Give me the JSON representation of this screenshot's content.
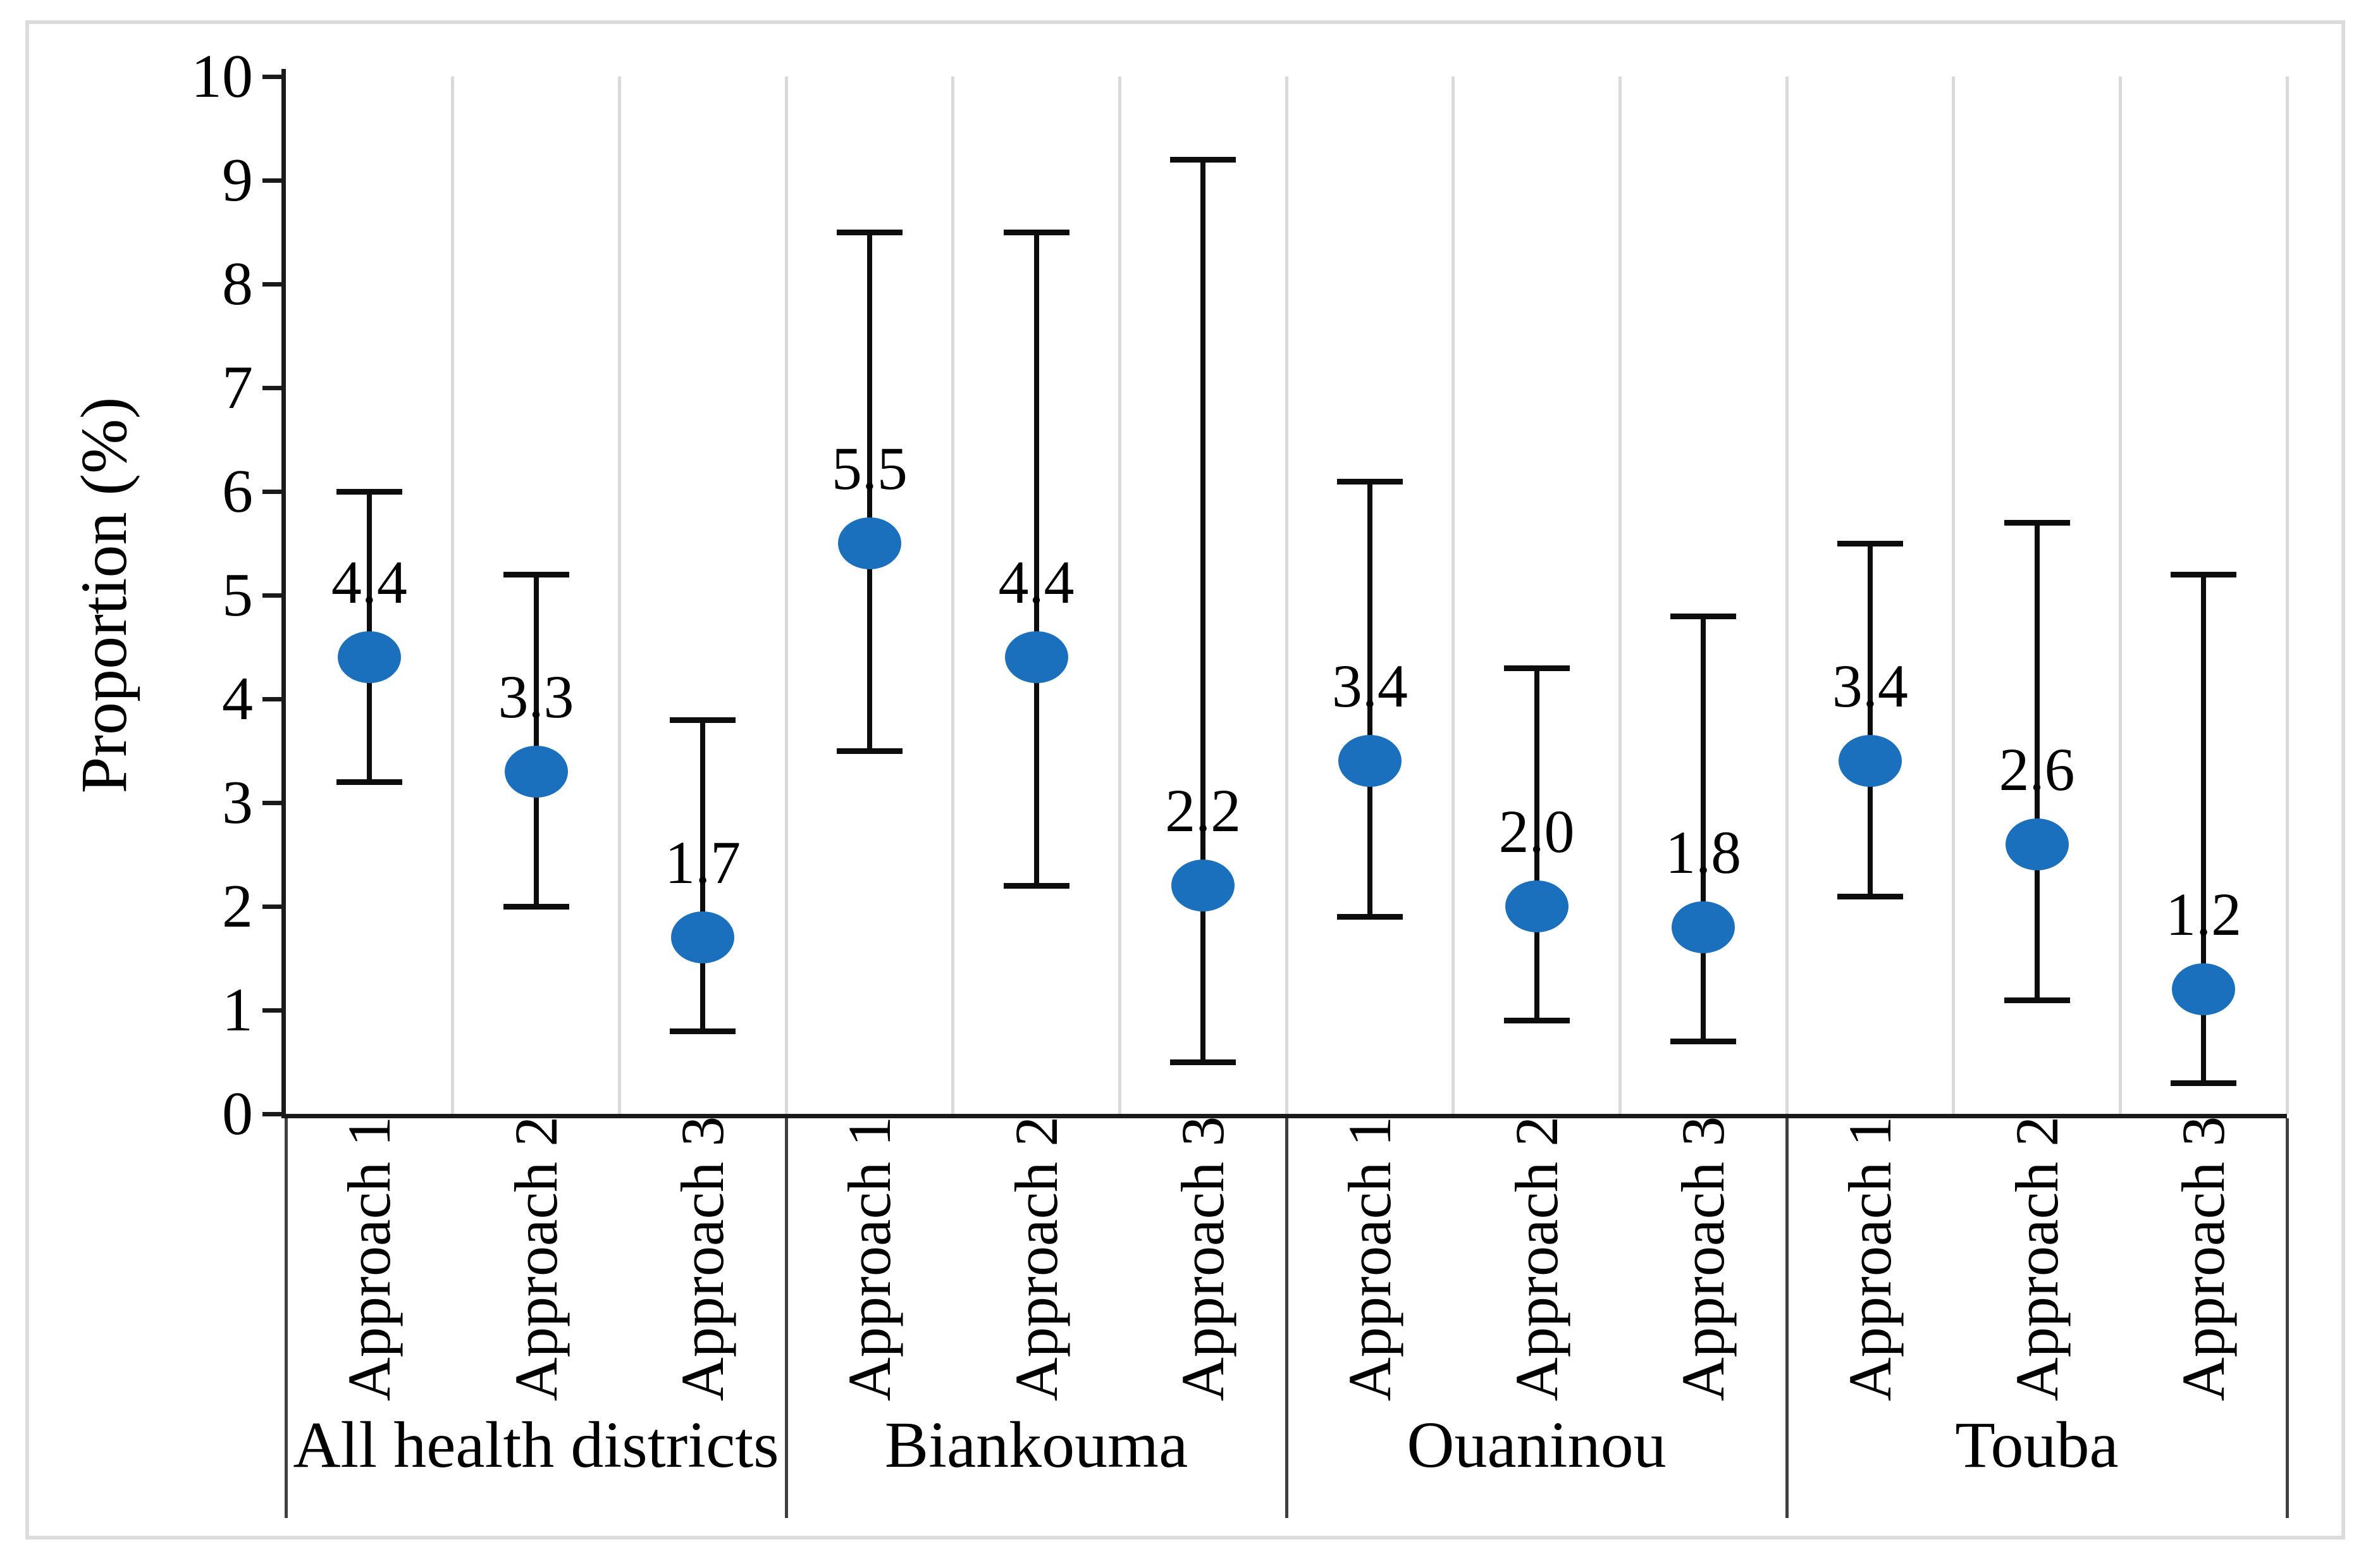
{
  "figure": {
    "background_color": "#ffffff",
    "border_color": "#dcdcdc",
    "gridline_color": "#d9d9d9",
    "separator_color": "#3f3f3f",
    "axis_color": "#1a1a1a",
    "marker_color": "#1b70be",
    "error_bar_color": "#0d0d0d"
  },
  "chart_data": {
    "type": "scatter",
    "title": "",
    "xlabel": "",
    "ylabel": "Proportion (%)",
    "ylim": [
      0,
      10
    ],
    "yticks": [
      "0",
      "1",
      "2",
      "3",
      "4",
      "5",
      "6",
      "7",
      "8",
      "9",
      "10"
    ],
    "legend": "none",
    "grid": "vertical column separators only",
    "error_bars": "95% CI, capped",
    "groups": [
      {
        "district": "All health districts",
        "points": [
          {
            "label": "Approach 1",
            "value": 4.4,
            "ci_low": 3.2,
            "ci_high": 6.0
          },
          {
            "label": "Approach 2",
            "value": 3.3,
            "ci_low": 2.0,
            "ci_high": 5.2
          },
          {
            "label": "Approach 3",
            "value": 1.7,
            "ci_low": 0.8,
            "ci_high": 3.8
          }
        ]
      },
      {
        "district": "Biankouma",
        "points": [
          {
            "label": "Approach 1",
            "value": 5.5,
            "ci_low": 3.5,
            "ci_high": 8.5
          },
          {
            "label": "Approach 2",
            "value": 4.4,
            "ci_low": 2.2,
            "ci_high": 8.5
          },
          {
            "label": "Approach 3",
            "value": 2.2,
            "ci_low": 0.5,
            "ci_high": 9.2
          }
        ]
      },
      {
        "district": "Ouaninou",
        "points": [
          {
            "label": "Approach 1",
            "value": 3.4,
            "ci_low": 1.9,
            "ci_high": 6.1
          },
          {
            "label": "Approach 2",
            "value": 2.0,
            "ci_low": 0.9,
            "ci_high": 4.3
          },
          {
            "label": "Approach 3",
            "value": 1.8,
            "ci_low": 0.7,
            "ci_high": 4.8
          }
        ]
      },
      {
        "district": "Touba",
        "points": [
          {
            "label": "Approach 1",
            "value": 3.4,
            "ci_low": 2.1,
            "ci_high": 5.5
          },
          {
            "label": "Approach 2",
            "value": 2.6,
            "ci_low": 1.1,
            "ci_high": 5.7
          },
          {
            "label": "Approach 3",
            "value": 1.2,
            "ci_low": 0.3,
            "ci_high": 5.2
          }
        ]
      }
    ]
  }
}
